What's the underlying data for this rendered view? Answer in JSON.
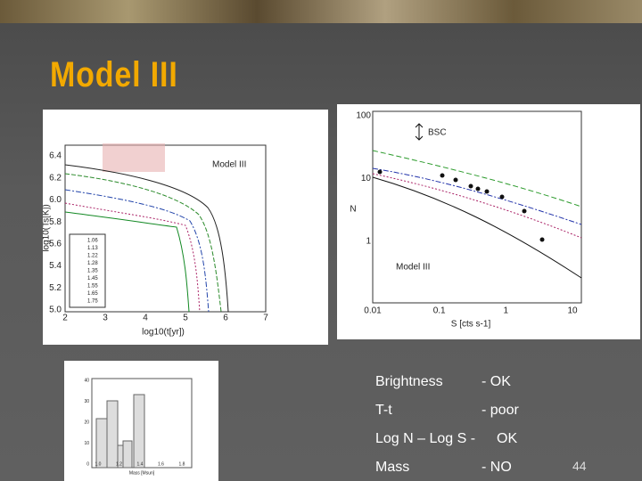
{
  "title": "Model III",
  "cooling_figure": {
    "label": "Model III",
    "x_axis": "log10(t[yr])",
    "y_axis": "log10(Ts[K])",
    "xticks": [
      "2",
      "3",
      "4",
      "5",
      "6",
      "7"
    ],
    "yticks": [
      "6.4",
      "6.2",
      "6.0",
      "5.8",
      "5.6",
      "5.4",
      "5.2",
      "5.0"
    ],
    "legend": [
      "1.06",
      "1.13",
      "1.22",
      "1.28",
      "1.35",
      "1.45",
      "1.55",
      "1.65",
      "1.75"
    ]
  },
  "lognlogs_figure": {
    "label": "Model III",
    "annotation": "BSC",
    "x_axis": "S [cts s-1]",
    "y_axis": "N",
    "xticks": [
      "0.01",
      "0.1",
      "1",
      "10"
    ],
    "yticks": [
      "100",
      "10",
      "1"
    ]
  },
  "mass_figure": {
    "x_axis": "Mass [Msun]",
    "xticks": [
      "1.0",
      "1.2",
      "1.4",
      "1.6",
      "1.8"
    ],
    "yticks": [
      "40",
      "30",
      "20",
      "10",
      "0"
    ]
  },
  "results": [
    {
      "label": "Brightness",
      "verdict": "- OK"
    },
    {
      "label": "T-t",
      "verdict": "- poor"
    },
    {
      "label": "Log N – Log S -",
      "verdict": "OK"
    },
    {
      "label": "Mass",
      "verdict": "- NO"
    }
  ],
  "page_number": "44"
}
